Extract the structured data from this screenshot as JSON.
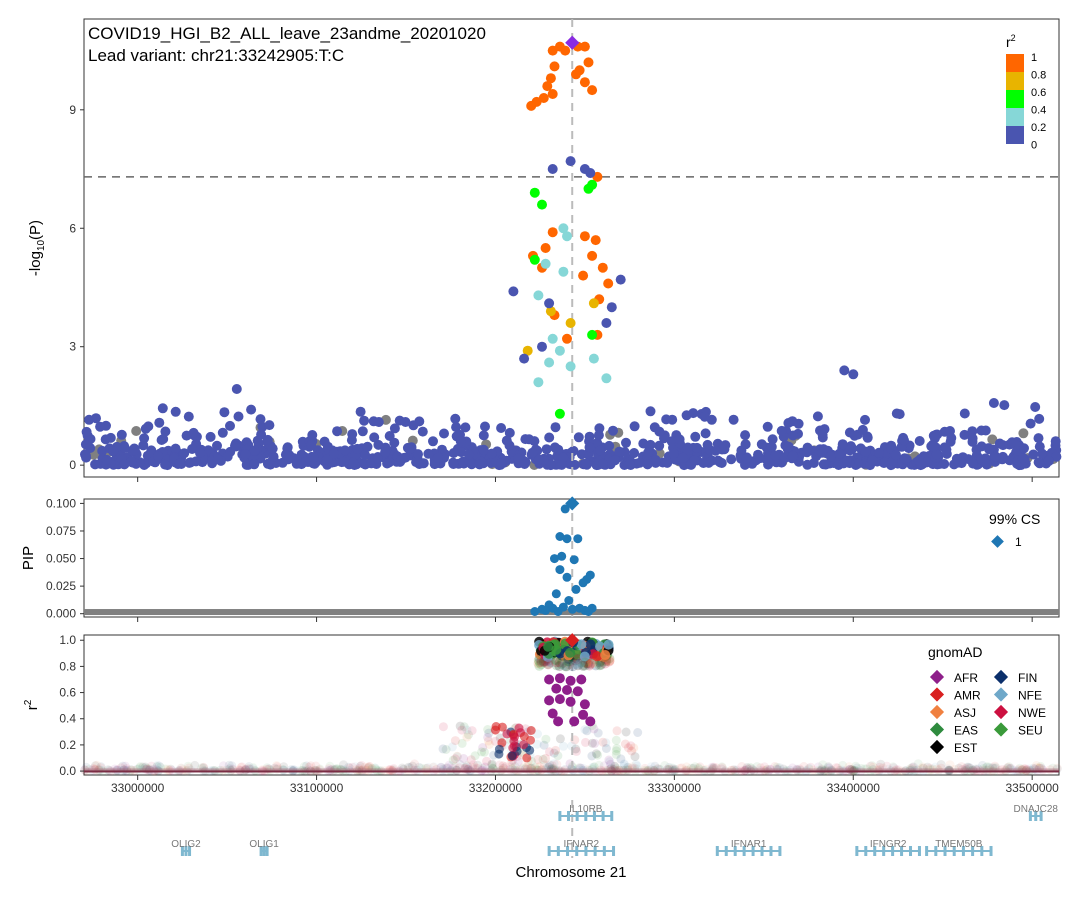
{
  "figure_title": "COVID19_HGI_B2_ALL_leave_23andme_20201020",
  "lead_variant_label": "Lead variant: chr21:33242905:T:C",
  "colors": {
    "r2_0": "#4a55b0",
    "r2_02": "#86d7d7",
    "r2_04": "#00ff00",
    "r2_06": "#e8b400",
    "r2_08": "#ff6600",
    "lead": "#8a2be2",
    "missing": "#808080",
    "cs": "#1f77b4",
    "gene": "#7fb8d0"
  },
  "chart_data": [
    {
      "type": "scatter",
      "panel": "manhattan",
      "ylabel": "-log10(P)",
      "xlim": [
        32970000,
        33515000
      ],
      "ylim": [
        -0.3,
        11.3
      ],
      "yticks": [
        0,
        3,
        6,
        9
      ],
      "genome_wide_threshold": 7.3,
      "lead_position": 33242905,
      "lead_value": 10.7,
      "legend": {
        "title": "r2",
        "labels": [
          "1",
          "0.8",
          "0.6",
          "0.4",
          "0.2",
          "0"
        ]
      },
      "points": [
        [
          33236000,
          10.6,
          1
        ],
        [
          33232000,
          10.5,
          1
        ],
        [
          33239000,
          10.5,
          1
        ],
        [
          33246000,
          10.6,
          1
        ],
        [
          33250000,
          10.6,
          1
        ],
        [
          33233000,
          10.1,
          1
        ],
        [
          33252000,
          10.2,
          1
        ],
        [
          33247000,
          10.0,
          1
        ],
        [
          33245000,
          9.9,
          1
        ],
        [
          33231000,
          9.8,
          1
        ],
        [
          33250000,
          9.7,
          1
        ],
        [
          33227000,
          9.3,
          1
        ],
        [
          33223000,
          9.2,
          1
        ],
        [
          33220000,
          9.1,
          1
        ],
        [
          33232000,
          9.4,
          1
        ],
        [
          33254000,
          9.5,
          1
        ],
        [
          33229000,
          9.6,
          1
        ],
        [
          33257000,
          7.3,
          1
        ],
        [
          33232000,
          5.9,
          1
        ],
        [
          33250000,
          5.8,
          1
        ],
        [
          33256000,
          5.7,
          1
        ],
        [
          33221000,
          5.3,
          1
        ],
        [
          33228000,
          5.5,
          1
        ],
        [
          33254000,
          5.3,
          1
        ],
        [
          33260000,
          5.0,
          1
        ],
        [
          33226000,
          5.0,
          1
        ],
        [
          33249000,
          4.8,
          1
        ],
        [
          33263000,
          4.6,
          1
        ],
        [
          33258000,
          4.2,
          1
        ],
        [
          33257000,
          3.3,
          1
        ],
        [
          33240000,
          3.2,
          1
        ],
        [
          33233000,
          3.8,
          1
        ],
        [
          33255000,
          4.1,
          0.7
        ],
        [
          33231000,
          3.9,
          0.7
        ],
        [
          33242000,
          3.6,
          0.7
        ],
        [
          33218000,
          2.9,
          0.7
        ],
        [
          33222000,
          6.9,
          0.5
        ],
        [
          33226000,
          6.6,
          0.5
        ],
        [
          33252000,
          7.0,
          0.5
        ],
        [
          33254000,
          7.1,
          0.5
        ],
        [
          33222000,
          5.2,
          0.5
        ],
        [
          33254000,
          3.3,
          0.5
        ],
        [
          33236000,
          1.3,
          0.5
        ],
        [
          33238000,
          6.0,
          0.3
        ],
        [
          33240000,
          5.8,
          0.3
        ],
        [
          33228000,
          5.1,
          0.3
        ],
        [
          33238000,
          4.9,
          0.3
        ],
        [
          33224000,
          4.3,
          0.3
        ],
        [
          33232000,
          3.2,
          0.3
        ],
        [
          33236000,
          2.9,
          0.3
        ],
        [
          33230000,
          2.6,
          0.3
        ],
        [
          33255000,
          2.7,
          0.3
        ],
        [
          33262000,
          2.2,
          0.3
        ],
        [
          33224000,
          2.1,
          0.3
        ],
        [
          33242000,
          2.5,
          0.3
        ],
        [
          33242000,
          7.7,
          0.1
        ],
        [
          33232000,
          7.5,
          0.1
        ],
        [
          33250000,
          7.5,
          0.1
        ],
        [
          33253000,
          7.4,
          0.1
        ],
        [
          33210000,
          4.4,
          0.1
        ],
        [
          33230000,
          4.1,
          0.1
        ],
        [
          33226000,
          3.0,
          0.1
        ],
        [
          33216000,
          2.7,
          0.1
        ],
        [
          33270000,
          4.7,
          0.1
        ],
        [
          33265000,
          4.0,
          0.1
        ],
        [
          33262000,
          3.6,
          0.1
        ],
        [
          33395000,
          2.4,
          0.1
        ],
        [
          33400000,
          2.3,
          0.1
        ]
      ],
      "background": {
        "count": 900,
        "grey_count": 45,
        "median": 0.4
      }
    },
    {
      "type": "scatter",
      "panel": "fine_mapping",
      "ylabel": "PIP",
      "ylim": [
        -0.003,
        0.104
      ],
      "yticks": [
        "0.000",
        "0.025",
        "0.050",
        "0.075",
        "0.100"
      ],
      "legend": {
        "title": "99% CS",
        "labels": [
          "1"
        ]
      },
      "points": [
        [
          33242905,
          0.1
        ],
        [
          33239000,
          0.095
        ],
        [
          33236000,
          0.07
        ],
        [
          33240000,
          0.068
        ],
        [
          33246000,
          0.068
        ],
        [
          33237000,
          0.052
        ],
        [
          33233000,
          0.05
        ],
        [
          33244000,
          0.049
        ],
        [
          33236000,
          0.04
        ],
        [
          33240000,
          0.033
        ],
        [
          33253000,
          0.035
        ],
        [
          33251000,
          0.031
        ],
        [
          33249000,
          0.028
        ],
        [
          33245000,
          0.022
        ],
        [
          33234000,
          0.018
        ],
        [
          33241000,
          0.012
        ],
        [
          33230000,
          0.008
        ],
        [
          33238000,
          0.006
        ],
        [
          33247000,
          0.005
        ],
        [
          33254000,
          0.005
        ],
        [
          33232000,
          0.005
        ],
        [
          33226000,
          0.004
        ],
        [
          33243000,
          0.004
        ],
        [
          33250000,
          0.003
        ],
        [
          33228000,
          0.003
        ],
        [
          33235000,
          0.002
        ],
        [
          33252000,
          0.002
        ],
        [
          33222000,
          0.002
        ]
      ]
    },
    {
      "type": "scatter",
      "panel": "gnomad_ld",
      "ylabel": "r2",
      "ylim": [
        -0.03,
        1.04
      ],
      "yticks": [
        "0.0",
        "0.2",
        "0.4",
        "0.6",
        "0.8",
        "1.0"
      ],
      "legend": {
        "title": "gnomAD",
        "items": [
          {
            "label": "AFR",
            "color": "#8e1f8a"
          },
          {
            "label": "AMR",
            "color": "#d92020"
          },
          {
            "label": "ASJ",
            "color": "#f08040"
          },
          {
            "label": "EAS",
            "color": "#2e8b3e"
          },
          {
            "label": "EST",
            "color": "#000000"
          },
          {
            "label": "FIN",
            "color": "#0b2f6b"
          },
          {
            "label": "NFE",
            "color": "#6fa8c9"
          },
          {
            "label": "NWE",
            "color": "#cc1040"
          },
          {
            "label": "SEU",
            "color": "#3a9a3a"
          }
        ]
      },
      "afr_points": [
        [
          33230000,
          0.7
        ],
        [
          33236000,
          0.71
        ],
        [
          33242000,
          0.69
        ],
        [
          33248000,
          0.7
        ],
        [
          33234000,
          0.63
        ],
        [
          33240000,
          0.62
        ],
        [
          33246000,
          0.61
        ],
        [
          33230000,
          0.54
        ],
        [
          33236000,
          0.55
        ],
        [
          33242000,
          0.53
        ],
        [
          33250000,
          0.51
        ],
        [
          33235000,
          0.38
        ],
        [
          33244000,
          0.38
        ],
        [
          33253000,
          0.38
        ],
        [
          33232000,
          0.44
        ],
        [
          33249000,
          0.43
        ]
      ],
      "xticks": [
        "33000000",
        "33100000",
        "33200000",
        "33300000",
        "33400000",
        "33500000"
      ],
      "xlabel": "Chromosome 21"
    }
  ],
  "genes": [
    {
      "name": "IL10RB",
      "start": 33236000,
      "end": 33265000,
      "row": 0
    },
    {
      "name": "DNAJC28",
      "start": 33499000,
      "end": 33505000,
      "row": 0
    },
    {
      "name": "OLIG2",
      "start": 33025000,
      "end": 33029000,
      "row": 1
    },
    {
      "name": "OLIG1",
      "start": 33069000,
      "end": 33072000,
      "row": 1
    },
    {
      "name": "IFNAR2",
      "start": 33230000,
      "end": 33266000,
      "row": 1
    },
    {
      "name": "IFNAR1",
      "start": 33324000,
      "end": 33359000,
      "row": 1
    },
    {
      "name": "IFNGR2",
      "start": 33402000,
      "end": 33437000,
      "row": 1
    },
    {
      "name": "TMEM50B",
      "start": 33441000,
      "end": 33477000,
      "row": 1
    }
  ]
}
